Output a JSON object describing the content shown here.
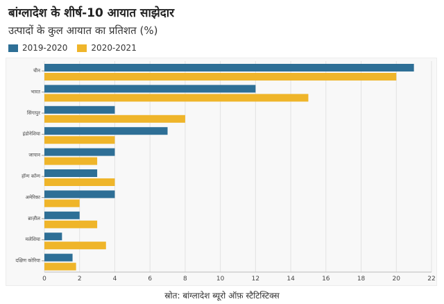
{
  "title": "बांग्लादेश के शीर्ष-10 आयात साझेदार",
  "subtitle": "उत्पादों के कुल आयात का प्रतिशत (%)",
  "source": "स्रोत: बांग्लादेश ब्यूरो ऑफ़ स्टैटिस्टिक्स",
  "colors": {
    "s1": "#2e6f96",
    "s2": "#efb52a"
  },
  "chart_data": {
    "type": "bar",
    "orientation": "horizontal",
    "categories": [
      "चीन",
      "भारत",
      "सिंगापुर",
      "इंडोनेशिया",
      "जापान",
      "हॉन्ग कॉन्ग",
      "अमेरिका",
      "ब्राज़ील",
      "मलेशिया",
      "दक्षिण कोरिया"
    ],
    "series": [
      {
        "name": "2019-2020",
        "values": [
          21,
          12,
          4,
          7,
          4,
          3,
          4,
          2,
          1,
          1.6
        ]
      },
      {
        "name": "2020-2021",
        "values": [
          20,
          15,
          8,
          4,
          3,
          4,
          2,
          3,
          3.5,
          1.8
        ]
      }
    ],
    "xlim": [
      0,
      22
    ],
    "xticks": [
      "0",
      "2",
      "4",
      "6",
      "8",
      "10",
      "12",
      "14",
      "16",
      "18",
      "20",
      "22"
    ],
    "grid": true,
    "legend": "top-left"
  }
}
